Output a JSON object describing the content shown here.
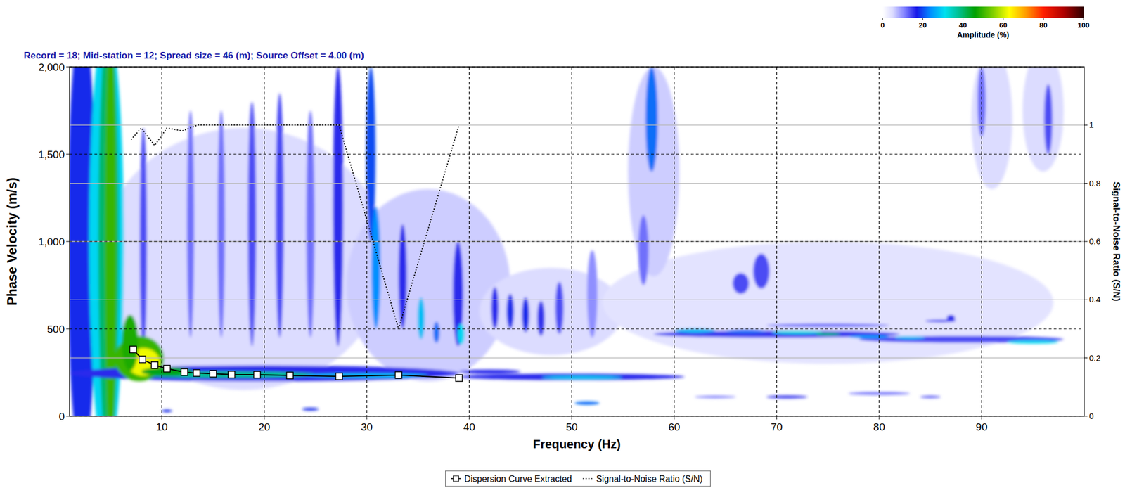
{
  "chart_data": {
    "type": "heatmap",
    "title": "Record = 18; Mid-station = 12; Spread size = 46 (m); Source Offset = 4.00 (m)",
    "x_label": "Frequency (Hz)",
    "y_label": "Phase Velocity (m/s)",
    "y2_label": "Signal-to-Noise Ratio (S/N)",
    "xlim": [
      1,
      100
    ],
    "xticks": [
      10,
      20,
      30,
      40,
      50,
      60,
      70,
      80,
      90
    ],
    "ylim": [
      0,
      2000
    ],
    "yticks": [
      0,
      500,
      {
        "value": 1000,
        "label": "1,000"
      },
      {
        "value": 1500,
        "label": "1,500"
      },
      {
        "value": 2000,
        "label": "2,000"
      }
    ],
    "y2lim": [
      0,
      1.2
    ],
    "y2ticks": [
      0,
      0.2,
      0.4,
      0.6,
      0.8,
      1
    ],
    "grid": true,
    "legend": "bottom",
    "colorbar": {
      "label": "Amplitude (%)",
      "lim": [
        0,
        100
      ],
      "ticks": [
        0,
        20,
        40,
        60,
        80,
        100
      ]
    },
    "energy": [
      {
        "frequency": 18,
        "velocity": 900,
        "frequency_width": 14,
        "velocity_width": 750,
        "amplitude": 5
      },
      {
        "frequency": 36,
        "velocity": 750,
        "frequency_width": 8,
        "velocity_width": 550,
        "amplitude": 6
      },
      {
        "frequency": 48,
        "velocity": 600,
        "frequency_width": 7,
        "velocity_width": 250,
        "amplitude": 5
      },
      {
        "frequency": 75,
        "velocity": 650,
        "frequency_width": 22,
        "velocity_width": 350,
        "amplitude": 4
      },
      {
        "frequency": 58,
        "velocity": 1400,
        "frequency_width": 2.5,
        "velocity_width": 600,
        "amplitude": 6
      },
      {
        "frequency": 91,
        "velocity": 1700,
        "frequency_width": 2,
        "velocity_width": 400,
        "amplitude": 5
      },
      {
        "frequency": 96,
        "velocity": 1750,
        "frequency_width": 2,
        "velocity_width": 350,
        "amplitude": 5
      },
      {
        "frequency": 2.2,
        "velocity": 1000,
        "frequency_width": 1.4,
        "velocity_width": 1250,
        "amplitude": 18
      },
      {
        "frequency": 4.6,
        "velocity": 1000,
        "frequency_width": 1.7,
        "velocity_width": 1250,
        "amplitude": 30
      },
      {
        "frequency": 4.8,
        "velocity": 1000,
        "frequency_width": 1.0,
        "velocity_width": 1250,
        "amplitude": 40
      },
      {
        "frequency": 5.0,
        "velocity": 1000,
        "frequency_width": 0.55,
        "velocity_width": 1250,
        "amplitude": 50
      },
      {
        "frequency": 8.2,
        "velocity": 1000,
        "frequency_width": 0.35,
        "velocity_width": 650,
        "amplitude": 14
      },
      {
        "frequency": 12.8,
        "velocity": 1100,
        "frequency_width": 0.35,
        "velocity_width": 650,
        "amplitude": 12
      },
      {
        "frequency": 15.8,
        "velocity": 1100,
        "frequency_width": 0.35,
        "velocity_width": 650,
        "amplitude": 12
      },
      {
        "frequency": 18.8,
        "velocity": 1100,
        "frequency_width": 0.4,
        "velocity_width": 700,
        "amplitude": 14
      },
      {
        "frequency": 21.5,
        "velocity": 1150,
        "frequency_width": 0.4,
        "velocity_width": 700,
        "amplitude": 14
      },
      {
        "frequency": 24.5,
        "velocity": 1100,
        "frequency_width": 0.4,
        "velocity_width": 650,
        "amplitude": 12
      },
      {
        "frequency": 27.2,
        "velocity": 1200,
        "frequency_width": 0.5,
        "velocity_width": 800,
        "amplitude": 16
      },
      {
        "frequency": 30.4,
        "velocity": 1500,
        "frequency_width": 0.45,
        "velocity_width": 500,
        "amplitude": 20
      },
      {
        "frequency": 30.9,
        "velocity": 850,
        "frequency_width": 0.45,
        "velocity_width": 350,
        "amplitude": 24
      },
      {
        "frequency": 33.5,
        "velocity": 800,
        "frequency_width": 0.4,
        "velocity_width": 300,
        "amplitude": 16
      },
      {
        "frequency": 35.3,
        "velocity": 560,
        "frequency_width": 0.35,
        "velocity_width": 120,
        "amplitude": 28
      },
      {
        "frequency": 36.8,
        "velocity": 480,
        "frequency_width": 0.3,
        "velocity_width": 60,
        "amplitude": 22
      },
      {
        "frequency": 38.9,
        "velocity": 700,
        "frequency_width": 0.5,
        "velocity_width": 300,
        "amplitude": 16
      },
      {
        "frequency": 39.2,
        "velocity": 470,
        "frequency_width": 0.35,
        "velocity_width": 60,
        "amplitude": 30
      },
      {
        "frequency": 42.5,
        "velocity": 620,
        "frequency_width": 0.35,
        "velocity_width": 120,
        "amplitude": 16
      },
      {
        "frequency": 44,
        "velocity": 600,
        "frequency_width": 0.35,
        "velocity_width": 100,
        "amplitude": 18
      },
      {
        "frequency": 45.5,
        "velocity": 580,
        "frequency_width": 0.35,
        "velocity_width": 100,
        "amplitude": 18
      },
      {
        "frequency": 47,
        "velocity": 560,
        "frequency_width": 0.35,
        "velocity_width": 100,
        "amplitude": 16
      },
      {
        "frequency": 48.8,
        "velocity": 620,
        "frequency_width": 0.4,
        "velocity_width": 150,
        "amplitude": 14
      },
      {
        "frequency": 52,
        "velocity": 700,
        "frequency_width": 0.5,
        "velocity_width": 250,
        "amplitude": 10
      },
      {
        "frequency": 57.8,
        "velocity": 1700,
        "frequency_width": 0.6,
        "velocity_width": 300,
        "amplitude": 22
      },
      {
        "frequency": 57,
        "velocity": 950,
        "frequency_width": 0.5,
        "velocity_width": 200,
        "amplitude": 12
      },
      {
        "frequency": 66.5,
        "velocity": 760,
        "frequency_width": 0.8,
        "velocity_width": 60,
        "amplitude": 14
      },
      {
        "frequency": 68.5,
        "velocity": 830,
        "frequency_width": 0.8,
        "velocity_width": 100,
        "amplitude": 14
      },
      {
        "frequency": 87,
        "velocity": 560,
        "frequency_width": 0.4,
        "velocity_width": 20,
        "amplitude": 16
      },
      {
        "frequency": 90,
        "velocity": 1800,
        "frequency_width": 0.4,
        "velocity_width": 200,
        "amplitude": 12
      },
      {
        "frequency": 96.5,
        "velocity": 1700,
        "frequency_width": 0.4,
        "velocity_width": 200,
        "amplitude": 14
      },
      {
        "frequency": 70,
        "velocity": 470,
        "frequency_width": 12,
        "velocity_width": 20,
        "amplitude": 15
      },
      {
        "frequency": 88,
        "velocity": 440,
        "frequency_width": 10,
        "velocity_width": 20,
        "amplitude": 14
      },
      {
        "frequency": 75,
        "velocity": 520,
        "frequency_width": 6,
        "velocity_width": 10,
        "amplitude": 12
      },
      {
        "frequency": 62,
        "velocity": 490,
        "frequency_width": 2,
        "velocity_width": 12,
        "amplitude": 28
      },
      {
        "frequency": 67,
        "velocity": 485,
        "frequency_width": 2,
        "velocity_width": 10,
        "amplitude": 22
      },
      {
        "frequency": 72,
        "velocity": 480,
        "frequency_width": 2.5,
        "velocity_width": 10,
        "amplitude": 32
      },
      {
        "frequency": 75,
        "velocity": 470,
        "frequency_width": 1.2,
        "velocity_width": 8,
        "amplitude": 40
      },
      {
        "frequency": 79,
        "velocity": 455,
        "frequency_width": 2,
        "velocity_width": 9,
        "amplitude": 25
      },
      {
        "frequency": 83,
        "velocity": 450,
        "frequency_width": 1.5,
        "velocity_width": 9,
        "amplitude": 28
      },
      {
        "frequency": 86,
        "velocity": 545,
        "frequency_width": 1.5,
        "velocity_width": 8,
        "amplitude": 14
      },
      {
        "frequency": 95,
        "velocity": 425,
        "frequency_width": 2.5,
        "velocity_width": 10,
        "amplitude": 30
      },
      {
        "frequency": 20,
        "velocity": 245,
        "frequency_width": 19,
        "velocity_width": 45,
        "amplitude": 16
      },
      {
        "frequency": 50,
        "velocity": 225,
        "frequency_width": 11,
        "velocity_width": 18,
        "amplitude": 16
      },
      {
        "frequency": 42,
        "velocity": 255,
        "frequency_width": 3,
        "velocity_width": 12,
        "amplitude": 16
      },
      {
        "frequency": 16,
        "velocity": 238,
        "frequency_width": 9,
        "velocity_width": 18,
        "amplitude": 38
      },
      {
        "frequency": 30,
        "velocity": 233,
        "frequency_width": 6,
        "velocity_width": 12,
        "amplitude": 28
      },
      {
        "frequency": 51,
        "velocity": 222,
        "frequency_width": 4,
        "velocity_width": 8,
        "amplitude": 30
      },
      {
        "frequency": 7.8,
        "velocity": 330,
        "frequency_width": 2.4,
        "velocity_width": 130,
        "amplitude": 50
      },
      {
        "frequency": 8.2,
        "velocity": 310,
        "frequency_width": 1.6,
        "velocity_width": 80,
        "amplitude": 62
      },
      {
        "frequency": 6.9,
        "velocity": 420,
        "frequency_width": 0.8,
        "velocity_width": 160,
        "amplitude": 48
      },
      {
        "frequency": 10.5,
        "velocity": 255,
        "frequency_width": 2.5,
        "velocity_width": 25,
        "amplitude": 45
      },
      {
        "frequency": 51.5,
        "velocity": 75,
        "frequency_width": 1.2,
        "velocity_width": 10,
        "amplitude": 22
      },
      {
        "frequency": 71,
        "velocity": 110,
        "frequency_width": 2,
        "velocity_width": 8,
        "amplitude": 16
      },
      {
        "frequency": 80,
        "velocity": 130,
        "frequency_width": 3,
        "velocity_width": 8,
        "amplitude": 12
      },
      {
        "frequency": 85,
        "velocity": 110,
        "frequency_width": 1,
        "velocity_width": 6,
        "amplitude": 14
      },
      {
        "frequency": 64,
        "velocity": 110,
        "frequency_width": 2,
        "velocity_width": 6,
        "amplitude": 12
      },
      {
        "frequency": 24.5,
        "velocity": 40,
        "frequency_width": 0.8,
        "velocity_width": 8,
        "amplitude": 18
      },
      {
        "frequency": 10.5,
        "velocity": 30,
        "frequency_width": 0.5,
        "velocity_width": 8,
        "amplitude": 18
      }
    ],
    "series": [
      {
        "name": "Dispersion Curve Extracted",
        "color": "#000000",
        "marker": "square",
        "line_style": "solid",
        "x": [
          7.2,
          8.1,
          9.3,
          10.5,
          12.2,
          13.4,
          15.0,
          16.8,
          19.3,
          22.5,
          27.3,
          33.1,
          39.0
        ],
        "values": [
          382,
          325,
          292,
          272,
          252,
          247,
          243,
          238,
          237,
          233,
          228,
          235,
          218
        ]
      },
      {
        "name": "Signal-to-Noise Ratio (S/N)",
        "color": "#000000",
        "marker": "none",
        "line_style": "dotted",
        "axis": "y2",
        "x": [
          7.0,
          8.0,
          9.3,
          10.5,
          12.0,
          13.5,
          20.0,
          27.3,
          33.1,
          39.0
        ],
        "values": [
          0.95,
          0.99,
          0.93,
          0.99,
          0.98,
          1.0,
          1.0,
          1.0,
          0.3,
          1.0
        ]
      }
    ]
  }
}
